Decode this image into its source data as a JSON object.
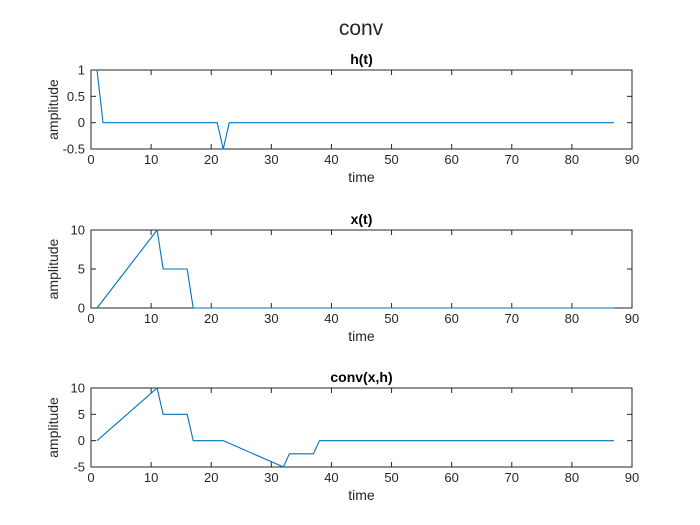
{
  "figure": {
    "title": "conv"
  },
  "colors": {
    "line": "#0072BD",
    "axes": "#262626"
  },
  "chart_data": [
    {
      "type": "line",
      "title": "h(t)",
      "xlabel": "time",
      "ylabel": "amplitude",
      "xlim": [
        0,
        90
      ],
      "ylim": [
        -0.5,
        1
      ],
      "xticks": [
        0,
        10,
        20,
        30,
        40,
        50,
        60,
        70,
        80,
        90
      ],
      "yticks": [
        -0.5,
        0,
        0.5,
        1
      ],
      "xtick_labels": [
        "0",
        "10",
        "20",
        "30",
        "40",
        "50",
        "60",
        "70",
        "80",
        "90"
      ],
      "ytick_labels": [
        "-0.5",
        "0",
        "0.5",
        "1"
      ],
      "grid": false,
      "series": [
        {
          "x": [
            1,
            2,
            21,
            22,
            23,
            87
          ],
          "y": [
            1,
            0,
            0,
            -0.5,
            0,
            0
          ]
        }
      ]
    },
    {
      "type": "line",
      "title": "x(t)",
      "xlabel": "time",
      "ylabel": "amplitude",
      "xlim": [
        0,
        90
      ],
      "ylim": [
        0,
        10
      ],
      "xticks": [
        0,
        10,
        20,
        30,
        40,
        50,
        60,
        70,
        80,
        90
      ],
      "yticks": [
        0,
        5,
        10
      ],
      "xtick_labels": [
        "0",
        "10",
        "20",
        "30",
        "40",
        "50",
        "60",
        "70",
        "80",
        "90"
      ],
      "ytick_labels": [
        "0",
        "5",
        "10"
      ],
      "grid": false,
      "series": [
        {
          "x": [
            1,
            11,
            12,
            16,
            17,
            87
          ],
          "y": [
            0,
            10,
            5,
            5,
            0,
            0
          ]
        }
      ]
    },
    {
      "type": "line",
      "title": "conv(x,h)",
      "xlabel": "time",
      "ylabel": "amplitude",
      "xlim": [
        0,
        90
      ],
      "ylim": [
        -5,
        10
      ],
      "xticks": [
        0,
        10,
        20,
        30,
        40,
        50,
        60,
        70,
        80,
        90
      ],
      "yticks": [
        -5,
        0,
        5,
        10
      ],
      "xtick_labels": [
        "0",
        "10",
        "20",
        "30",
        "40",
        "50",
        "60",
        "70",
        "80",
        "90"
      ],
      "ytick_labels": [
        "-5",
        "0",
        "5",
        "10"
      ],
      "grid": false,
      "series": [
        {
          "x": [
            1,
            11,
            12,
            16,
            17,
            22,
            32,
            33,
            37,
            38,
            87
          ],
          "y": [
            0,
            10,
            5,
            5,
            0,
            0,
            -5,
            -2.5,
            -2.5,
            0,
            0
          ]
        }
      ]
    }
  ]
}
